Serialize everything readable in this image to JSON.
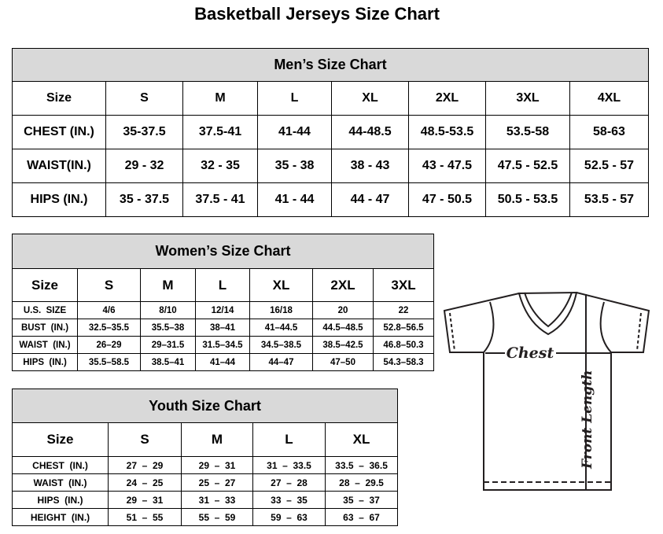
{
  "title": "Basketball Jerseys Size Chart",
  "men": {
    "title": "Men’s Size Chart",
    "header": [
      "Size",
      "S",
      "M",
      "L",
      "XL",
      "2XL",
      "3XL",
      "4XL"
    ],
    "rows": [
      [
        "CHEST (IN.)",
        "35-37.5",
        "37.5-41",
        "41-44",
        "44-48.5",
        "48.5-53.5",
        "53.5-58",
        "58-63"
      ],
      [
        "WAIST(IN.)",
        "29 - 32",
        "32 - 35",
        "35 - 38",
        "38 - 43",
        "43 - 47.5",
        "47.5 - 52.5",
        "52.5 - 57"
      ],
      [
        "HIPS (IN.)",
        "35 - 37.5",
        "37.5 - 41",
        "41 - 44",
        "44 - 47",
        "47 - 50.5",
        "50.5 - 53.5",
        "53.5 - 57"
      ]
    ]
  },
  "women": {
    "title": "Women’s Size Chart",
    "header": [
      "Size",
      "S",
      "M",
      "L",
      "XL",
      "2XL",
      "3XL"
    ],
    "rows": [
      [
        "U.S.  SIZE",
        "4/6",
        "8/10",
        "12/14",
        "16/18",
        "20",
        "22"
      ],
      [
        "BUST  (IN.)",
        "32.5–35.5",
        "35.5–38",
        "38–41",
        "41–44.5",
        "44.5–48.5",
        "52.8–56.5"
      ],
      [
        "WAIST  (IN.)",
        "26–29",
        "29–31.5",
        "31.5–34.5",
        "34.5–38.5",
        "38.5–42.5",
        "46.8–50.3"
      ],
      [
        "HIPS  (IN.)",
        "35.5–58.5",
        "38.5–41",
        "41–44",
        "44–47",
        "47–50",
        "54.3–58.3"
      ]
    ]
  },
  "youth": {
    "title": "Youth Size Chart",
    "header": [
      "Size",
      "S",
      "M",
      "L",
      "XL"
    ],
    "rows": [
      [
        "CHEST  (IN.)",
        "27  –  29",
        "29  –  31",
        "31  –  33.5",
        "33.5  –  36.5"
      ],
      [
        "WAIST  (IN.)",
        "24  –  25",
        "25  –  27",
        "27  –  28",
        "28  –  29.5"
      ],
      [
        "HIPS  (IN.)",
        "29  –  31",
        "31  –  33",
        "33  –  35",
        "35  –  37"
      ],
      [
        "HEIGHT  (IN.)",
        "51  –  55",
        "55  –  59",
        "59  –  63",
        "63  –  67"
      ]
    ]
  },
  "diagram": {
    "chest_label": "Chest",
    "length_label": "Front Length"
  }
}
